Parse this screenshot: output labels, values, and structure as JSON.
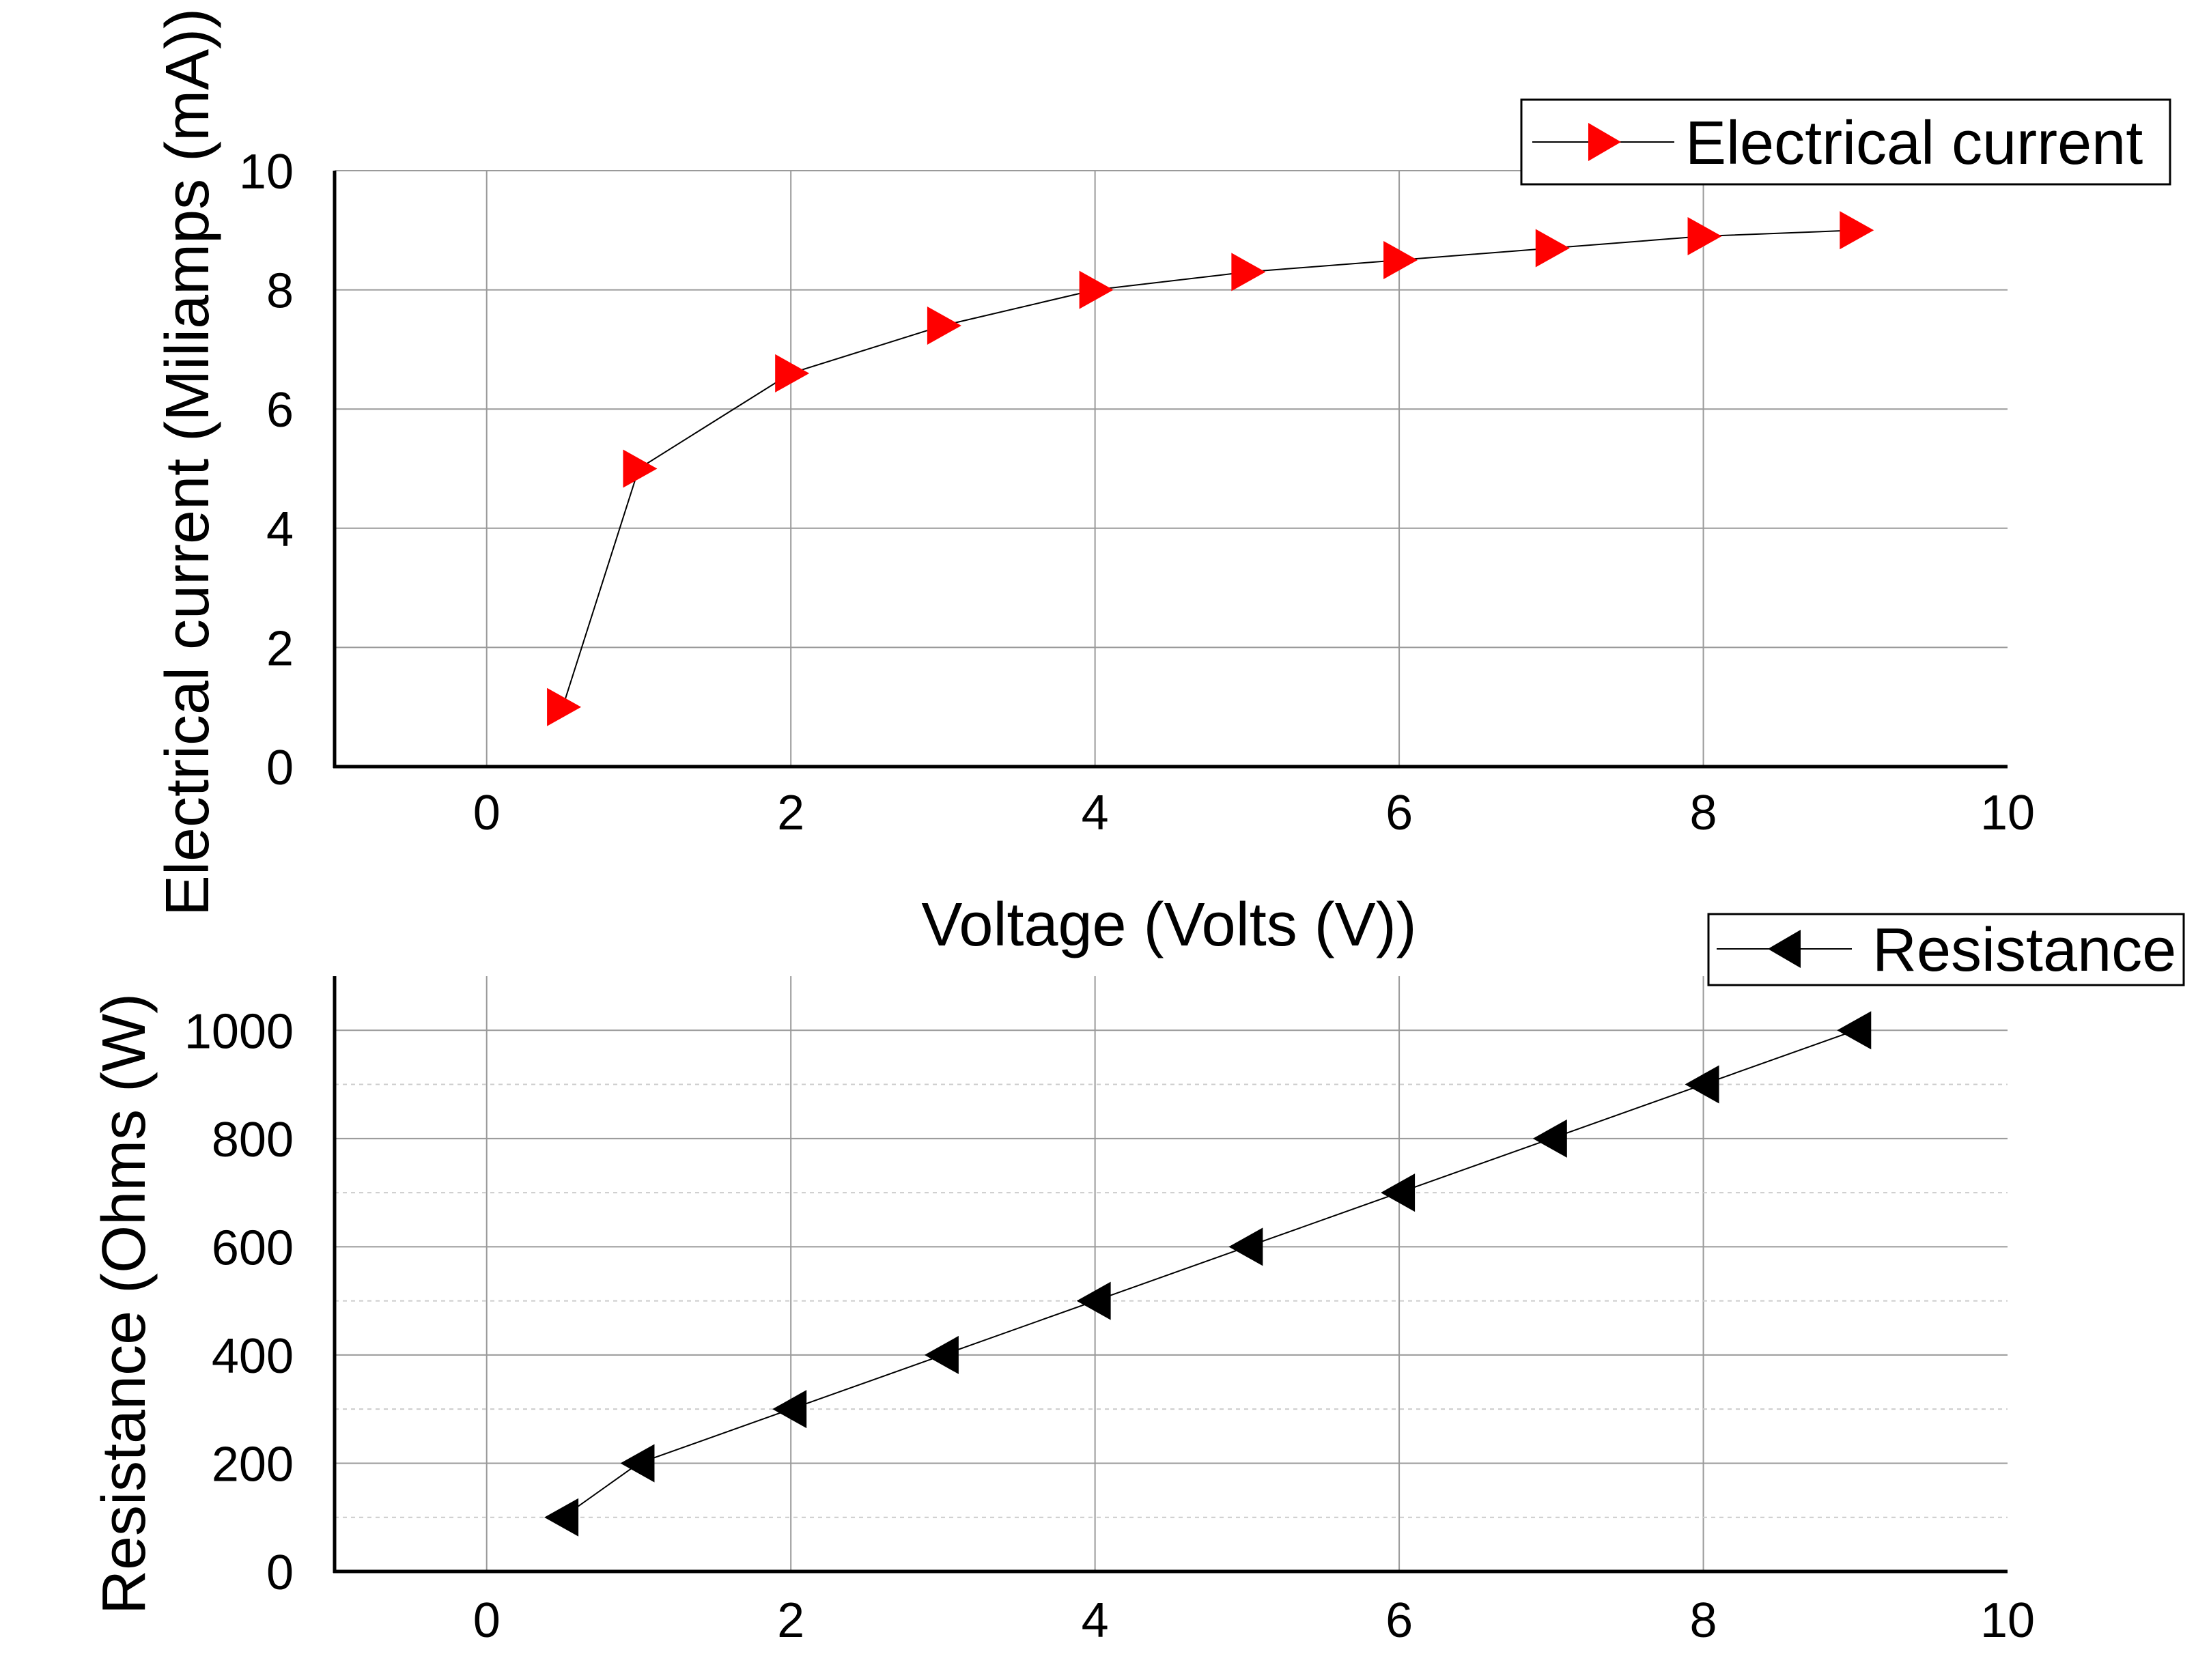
{
  "chart_data": [
    {
      "type": "line",
      "title": "",
      "xlabel": "Voltage (Volts (V))",
      "ylabel": "Electrical current (Miliamps (mA))",
      "xlim": [
        -1,
        10
      ],
      "ylim": [
        0,
        10
      ],
      "x_ticks": [
        "0",
        "2",
        "4",
        "6",
        "8",
        "10"
      ],
      "y_ticks": [
        "0",
        "2",
        "4",
        "6",
        "8",
        "10"
      ],
      "grid": true,
      "legend_position": "top-right",
      "series": [
        {
          "name": "Electrical current",
          "marker": "triangle-right",
          "marker_color": "#ff0000",
          "line_color": "#000000",
          "x": [
            0.5,
            1,
            2,
            3,
            4,
            5,
            6,
            7,
            8,
            9
          ],
          "y": [
            1.0,
            5.0,
            6.6,
            7.4,
            8.0,
            8.3,
            8.5,
            8.7,
            8.9,
            9.0
          ]
        }
      ]
    },
    {
      "type": "line",
      "title": "",
      "xlabel": "",
      "ylabel": "Resistance (Ohms (W)",
      "xlim": [
        -1,
        10
      ],
      "ylim": [
        0,
        1100
      ],
      "x_ticks": [
        "0",
        "2",
        "4",
        "6",
        "8",
        "10"
      ],
      "y_ticks": [
        "0",
        "200",
        "400",
        "600",
        "800",
        "1000"
      ],
      "grid": true,
      "legend_position": "top-right",
      "series": [
        {
          "name": "Resistance",
          "marker": "triangle-left",
          "marker_color": "#000000",
          "line_color": "#000000",
          "x": [
            0.5,
            1,
            2,
            3,
            4,
            5,
            6,
            7,
            8,
            9
          ],
          "y": [
            100,
            200,
            300,
            400,
            500,
            600,
            700,
            800,
            900,
            1000
          ]
        }
      ]
    }
  ]
}
